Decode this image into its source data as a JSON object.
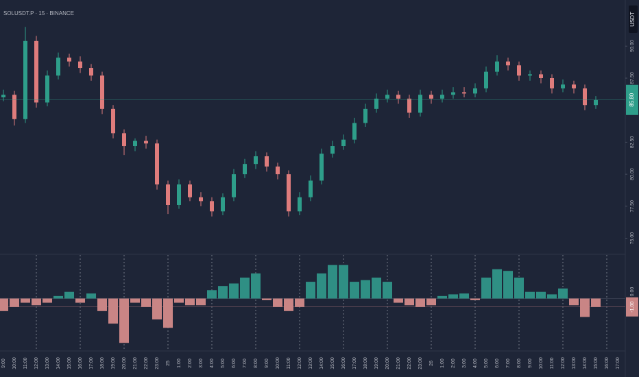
{
  "chart_data": [
    {
      "type": "candlestick",
      "title": "SOLUSDT.P · 15 · BINANCE",
      "unit_badge": "USDT",
      "open": [
        86.0,
        86.2,
        84.3,
        90.4,
        85.6,
        87.7,
        89.1,
        88.8,
        88.3,
        87.7,
        85.1,
        83.2,
        82.2,
        82.6,
        82.4,
        79.2,
        77.6,
        79.2,
        78.2,
        77.9,
        77.1,
        78.2,
        80.0,
        80.8,
        81.4,
        80.6,
        80.0,
        77.1,
        78.2,
        79.5,
        81.6,
        82.2,
        82.7,
        84.0,
        85.1,
        85.9,
        86.2,
        85.9,
        84.8,
        86.2,
        85.9,
        86.2,
        86.4,
        86.3,
        86.7,
        88.0,
        88.8,
        88.5,
        87.7,
        87.8,
        87.5,
        86.7,
        87.0,
        86.7,
        85.4,
        null,
        null
      ],
      "high": [
        86.6,
        86.5,
        91.5,
        90.8,
        88.1,
        89.5,
        89.4,
        89.2,
        88.6,
        88.0,
        85.4,
        83.5,
        82.8,
        83.0,
        82.7,
        79.5,
        79.6,
        79.5,
        78.6,
        78.2,
        78.5,
        80.4,
        81.2,
        81.8,
        81.7,
        80.9,
        80.3,
        78.6,
        79.9,
        82.0,
        82.6,
        83.1,
        84.4,
        85.5,
        86.3,
        86.6,
        86.5,
        86.2,
        86.6,
        86.5,
        86.6,
        86.8,
        86.8,
        87.1,
        88.4,
        89.3,
        89.1,
        88.8,
        88.1,
        88.1,
        87.8,
        87.4,
        87.3,
        87.0,
        86.1,
        null,
        null
      ],
      "low": [
        85.7,
        83.8,
        84.0,
        85.2,
        85.3,
        87.4,
        88.4,
        87.9,
        87.3,
        84.7,
        82.8,
        81.5,
        81.8,
        82.0,
        78.8,
        76.9,
        77.3,
        77.9,
        77.5,
        76.7,
        76.8,
        77.9,
        79.7,
        80.4,
        80.2,
        79.6,
        76.7,
        76.8,
        77.9,
        79.2,
        81.3,
        81.9,
        82.4,
        83.7,
        84.8,
        85.6,
        85.5,
        84.4,
        84.5,
        85.5,
        85.6,
        85.9,
        86.0,
        86.0,
        86.4,
        87.7,
        88.1,
        87.3,
        87.3,
        87.1,
        86.3,
        86.4,
        86.3,
        85.0,
        85.1,
        null,
        null
      ],
      "close": [
        86.2,
        84.3,
        90.4,
        85.6,
        87.7,
        89.1,
        88.8,
        88.3,
        87.7,
        85.1,
        83.2,
        82.2,
        82.6,
        82.4,
        79.2,
        77.6,
        79.2,
        78.2,
        77.9,
        77.1,
        78.2,
        80.0,
        80.8,
        81.4,
        80.6,
        80.0,
        77.1,
        78.2,
        79.5,
        81.6,
        82.2,
        82.7,
        84.0,
        85.1,
        85.9,
        86.2,
        85.9,
        84.8,
        86.2,
        85.9,
        86.2,
        86.4,
        86.3,
        86.7,
        88.0,
        88.8,
        88.5,
        87.7,
        87.8,
        87.5,
        86.7,
        87.0,
        86.7,
        85.4,
        85.8,
        null,
        null
      ],
      "last_close_label": "85.80",
      "up_color": "#2e9e8a",
      "down_color": "#df7c7c",
      "ylim": [
        73.8,
        93.6
      ],
      "yticks": [
        {
          "value": 75,
          "label": "75.00"
        },
        {
          "value": 77.5,
          "label": "77.50"
        },
        {
          "value": 80,
          "label": "80.00"
        },
        {
          "value": 82.5,
          "label": "82.50"
        },
        {
          "value": 87.5,
          "label": "87.50"
        },
        {
          "value": 90,
          "label": "90.00"
        }
      ]
    },
    {
      "type": "bar",
      "categories": [
        "9:00",
        "10:00",
        "11:00",
        "12:00",
        "13:00",
        "14:00",
        "15:00",
        "16:00",
        "17:00",
        "18:00",
        "19:00",
        "20:00",
        "21:00",
        "22:00",
        "23:00",
        "25",
        "1:00",
        "2:00",
        "3:00",
        "4:00",
        "5:00",
        "6:00",
        "7:00",
        "8:00",
        "9:00",
        "10:00",
        "11:00",
        "12:00",
        "13:00",
        "14:00",
        "15:00",
        "16:00",
        "17:00",
        "18:00",
        "19:00",
        "20:00",
        "21:00",
        "22:00",
        "23:00",
        "26",
        "1:00",
        "2:00",
        "3:00",
        "4:00",
        "5:00",
        "6:00",
        "7:00",
        "8:00",
        "9:00",
        "10:00",
        "11:00",
        "12:00",
        "13:00",
        "14:00",
        "15:00",
        "16:00",
        "17:00"
      ],
      "values": [
        -1.5,
        -1.0,
        -0.5,
        -0.8,
        -0.5,
        0.3,
        0.8,
        -0.5,
        0.6,
        -1.5,
        -3.0,
        -5.3,
        -0.5,
        -1.0,
        -2.5,
        -3.5,
        -0.5,
        -0.8,
        -0.8,
        1.0,
        1.5,
        1.8,
        2.5,
        3.0,
        -0.2,
        -1.0,
        -1.5,
        -1.0,
        2.0,
        3.0,
        4.0,
        4.0,
        2.0,
        2.2,
        2.5,
        2.0,
        -0.5,
        -0.8,
        -1.0,
        -0.8,
        0.3,
        0.5,
        0.6,
        -0.2,
        2.5,
        3.5,
        3.3,
        2.5,
        0.8,
        0.8,
        0.5,
        1.2,
        -0.8,
        -2.2,
        -1.0,
        null,
        null
      ],
      "last_value_label": "-1.00",
      "up_color": "#2f8f84",
      "down_color": "#c98585",
      "ylim": [
        -6.1,
        5.2
      ],
      "yticks": [
        {
          "value": 0,
          "label": "0.00"
        }
      ]
    }
  ]
}
